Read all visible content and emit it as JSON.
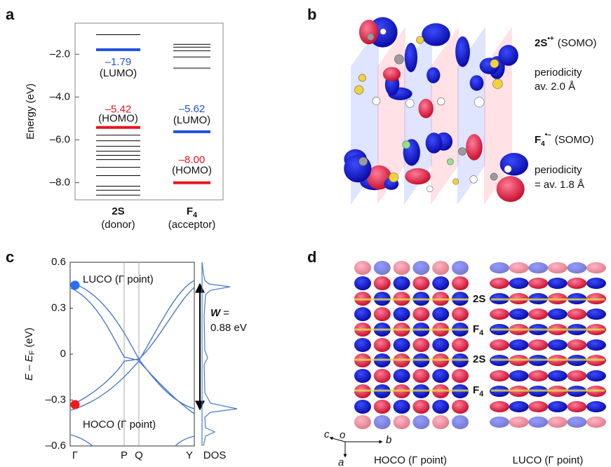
{
  "panel_labels": [
    "a",
    "b",
    "c",
    "d"
  ],
  "panel_a": {
    "y_label": "Energy (eV)",
    "ylim": [
      -8.8,
      -0.55
    ],
    "yticks": [
      {
        "value": -2,
        "label": "–2.0"
      },
      {
        "value": -4,
        "label": "–4.0"
      },
      {
        "value": -6,
        "label": "–6.0"
      },
      {
        "value": -8,
        "label": "–8.0"
      }
    ],
    "columns": [
      {
        "name": "2S",
        "role": "(donor)",
        "levels": [
          -1.09,
          -5.78,
          -6.04,
          -6.3,
          -6.53,
          -6.72,
          -6.92,
          -7.28,
          -7.67,
          -8.16,
          -8.35,
          -8.58
        ],
        "lumo": {
          "value": -1.79,
          "value_label": "–1.79",
          "tag": "(LUMO)",
          "color": "#1f4fe0"
        },
        "homo": {
          "value": -5.42,
          "value_label": "–5.42",
          "tag": "(HOMO)",
          "color": "#e8141e"
        }
      },
      {
        "name": "F",
        "name_sub": "4",
        "role": "(acceptor)",
        "levels": [
          -1.54,
          -1.67,
          -1.84,
          -2.13,
          -2.65
        ],
        "lumo": {
          "value": -5.62,
          "value_label": "–5.62",
          "tag": "(LUMO)",
          "color": "#1f4fe0"
        },
        "homo": {
          "value": -8.0,
          "value_label": "–8.00",
          "tag": "(HOMO)",
          "color": "#e8141e"
        }
      }
    ]
  },
  "panel_b": {
    "cation": {
      "name": "2S",
      "sup": "•+",
      "tag": "(SOMO)"
    },
    "cation_periodicity": [
      "periodicity",
      "av. 2.0 Å"
    ],
    "anion": {
      "name": "F",
      "sub": "4",
      "sup": "•–",
      "tag": "(SOMO)"
    },
    "anion_periodicity": [
      "periodicity",
      "= av. 1.8 Å"
    ]
  },
  "panel_c": {
    "y_label": {
      "main": "E – E",
      "sub": "F",
      "unit": "(eV)"
    },
    "ylim": [
      -0.6,
      0.6
    ],
    "yticks": [
      0.6,
      0.3,
      0,
      {
        "value": -0.3,
        "label": "–0.3"
      },
      {
        "value": -0.6,
        "label": "–0.6"
      }
    ],
    "x_labels": [
      "Γ",
      "P",
      "Q",
      "Y"
    ],
    "dos_label": "DOS",
    "luco_label": "LUCO (Γ point)",
    "hoco_label": "HOCO (Γ point)",
    "luco_gamma": {
      "value": 0.45,
      "color": "#2a6ef5"
    },
    "hoco_gamma": {
      "value": -0.33,
      "color": "#ee1c1c"
    },
    "width_symbol": "W",
    "width_eq": "=",
    "width_value": "0.88 eV"
  },
  "panel_d": {
    "layers": [
      {
        "name": "2S"
      },
      {
        "name": "F",
        "sub": "4"
      },
      {
        "name": "2S"
      },
      {
        "name": "F",
        "sub": "4"
      }
    ],
    "axes": [
      "c",
      "o",
      "b",
      "a"
    ],
    "captions": [
      "HOCO (Γ point)",
      "LUCO (Γ point)"
    ]
  }
}
